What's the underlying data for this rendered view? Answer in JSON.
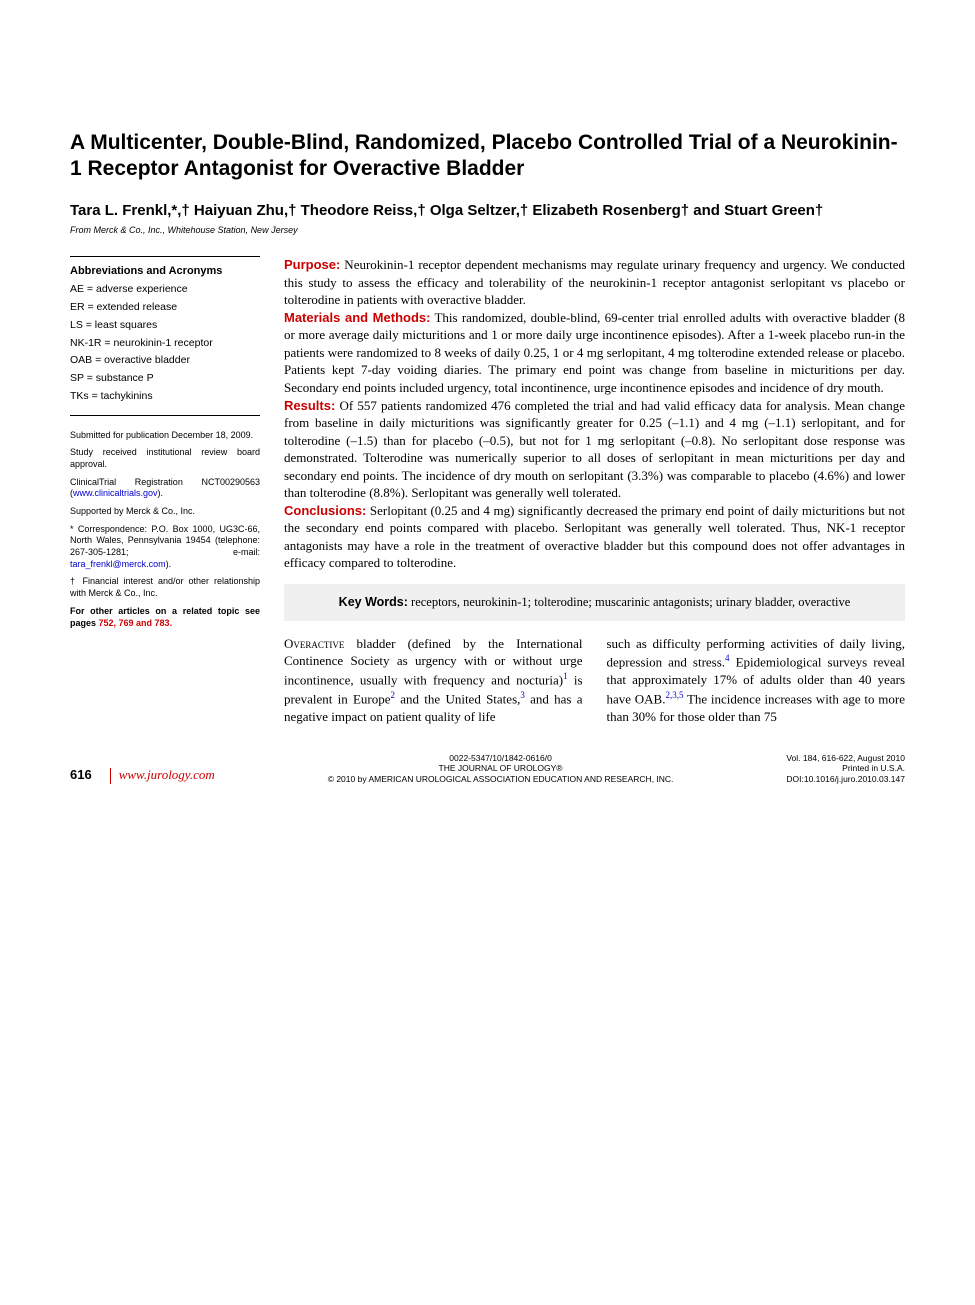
{
  "title": "A Multicenter, Double-Blind, Randomized, Placebo Controlled Trial of a Neurokinin-1 Receptor Antagonist for Overactive Bladder",
  "authors": "Tara L. Frenkl,*,† Haiyuan Zhu,† Theodore Reiss,† Olga Seltzer,† Elizabeth Rosenberg† and Stuart Green†",
  "affiliation": "From Merck & Co., Inc., Whitehouse Station, New Jersey",
  "abbrev": {
    "title": "Abbreviations and Acronyms",
    "items": [
      "AE = adverse experience",
      "ER = extended release",
      "LS = least squares",
      "NK-1R = neurokinin-1 receptor",
      "OAB = overactive bladder",
      "SP = substance P",
      "TKs = tachykinins"
    ]
  },
  "footnotes": {
    "submitted": "Submitted for publication December 18, 2009.",
    "approval": "Study received institutional review board approval.",
    "registration_pre": "ClinicalTrial Registration NCT00290563 (",
    "registration_link": "www.clinicaltrials.gov",
    "registration_post": ").",
    "support": "Supported by Merck & Co., Inc.",
    "correspondence_pre": "* Correspondence: P.O. Box 1000, UG3C-66, North Wales, Pennsylvania 19454 (telephone: 267-305-1281; e-mail: ",
    "correspondence_email": "tara_frenkl@merck.com",
    "correspondence_post": ").",
    "coi": "† Financial interest and/or other relationship with Merck & Co., Inc."
  },
  "related": {
    "pre": "For other articles on a related topic see pages ",
    "pages": "752, 769 and 783."
  },
  "abstract": {
    "purpose_label": "Purpose:",
    "purpose": " Neurokinin-1 receptor dependent mechanisms may regulate urinary frequency and urgency. We conducted this study to assess the efficacy and tolerability of the neurokinin-1 receptor antagonist serlopitant vs placebo or tolterodine in patients with overactive bladder.",
    "methods_label": "Materials and Methods:",
    "methods": " This randomized, double-blind, 69-center trial enrolled adults with overactive bladder (8 or more average daily micturitions and 1 or more daily urge incontinence episodes). After a 1-week placebo run-in the patients were randomized to 8 weeks of daily 0.25, 1 or 4 mg serlopitant, 4 mg tolterodine extended release or placebo. Patients kept 7-day voiding diaries. The primary end point was change from baseline in micturitions per day. Secondary end points included urgency, total incontinence, urge incontinence episodes and incidence of dry mouth.",
    "results_label": "Results:",
    "results": " Of 557 patients randomized 476 completed the trial and had valid efficacy data for analysis. Mean change from baseline in daily micturitions was significantly greater for 0.25 (–1.1) and 4 mg (–1.1) serlopitant, and for tolterodine (–1.5) than for placebo (–0.5), but not for 1 mg serlopitant (–0.8). No serlopitant dose response was demonstrated. Tolterodine was numerically superior to all doses of serlopitant in mean micturitions per day and secondary end points. The incidence of dry mouth on serlopitant (3.3%) was comparable to placebo (4.6%) and lower than tolterodine (8.8%). Serlopitant was generally well tolerated.",
    "conclusions_label": "Conclusions:",
    "conclusions": " Serlopitant (0.25 and 4 mg) significantly decreased the primary end point of daily micturitions but not the secondary end points compared with placebo. Serlopitant was generally well tolerated. Thus, NK-1 receptor antagonists may have a role in the treatment of overactive bladder but this compound does not offer advantages in efficacy compared to tolterodine."
  },
  "keywords": {
    "label": "Key Words:",
    "text": " receptors, neurokinin-1; tolterodine; muscarinic antagonists; urinary bladder, overactive"
  },
  "body": {
    "col1_lead": "Overactive",
    "col1_a": " bladder (defined by the International Continence Society as urgency with or without urge incontinence, usually with frequency and nocturia)",
    "col1_b": " is prevalent in Europe",
    "col1_c": " and the United States,",
    "col1_d": " and has a negative impact on patient quality of life",
    "col2_a": "such as difficulty performing activities of daily living, depression and stress.",
    "col2_b": " Epidemiological surveys reveal that approximately 17% of adults older than 40 years have OAB.",
    "col2_c": " The incidence increases with age to more than 30% for those older than 75"
  },
  "footer": {
    "page": "616",
    "url": "www.jurology.com",
    "issn": "0022-5347/10/1842-0616/0",
    "journal": "THE JOURNAL OF UROLOGY®",
    "copyright": "© 2010 by AMERICAN UROLOGICAL ASSOCIATION EDUCATION AND RESEARCH, INC.",
    "vol": "Vol. 184, 616-622, August 2010",
    "printed": "Printed in U.S.A.",
    "doi": "DOI:10.1016/j.juro.2010.03.147"
  },
  "colors": {
    "accent": "#cc0000",
    "link": "#0000cc",
    "bg": "#ffffff",
    "keywords_bg": "#f0f0f0"
  }
}
